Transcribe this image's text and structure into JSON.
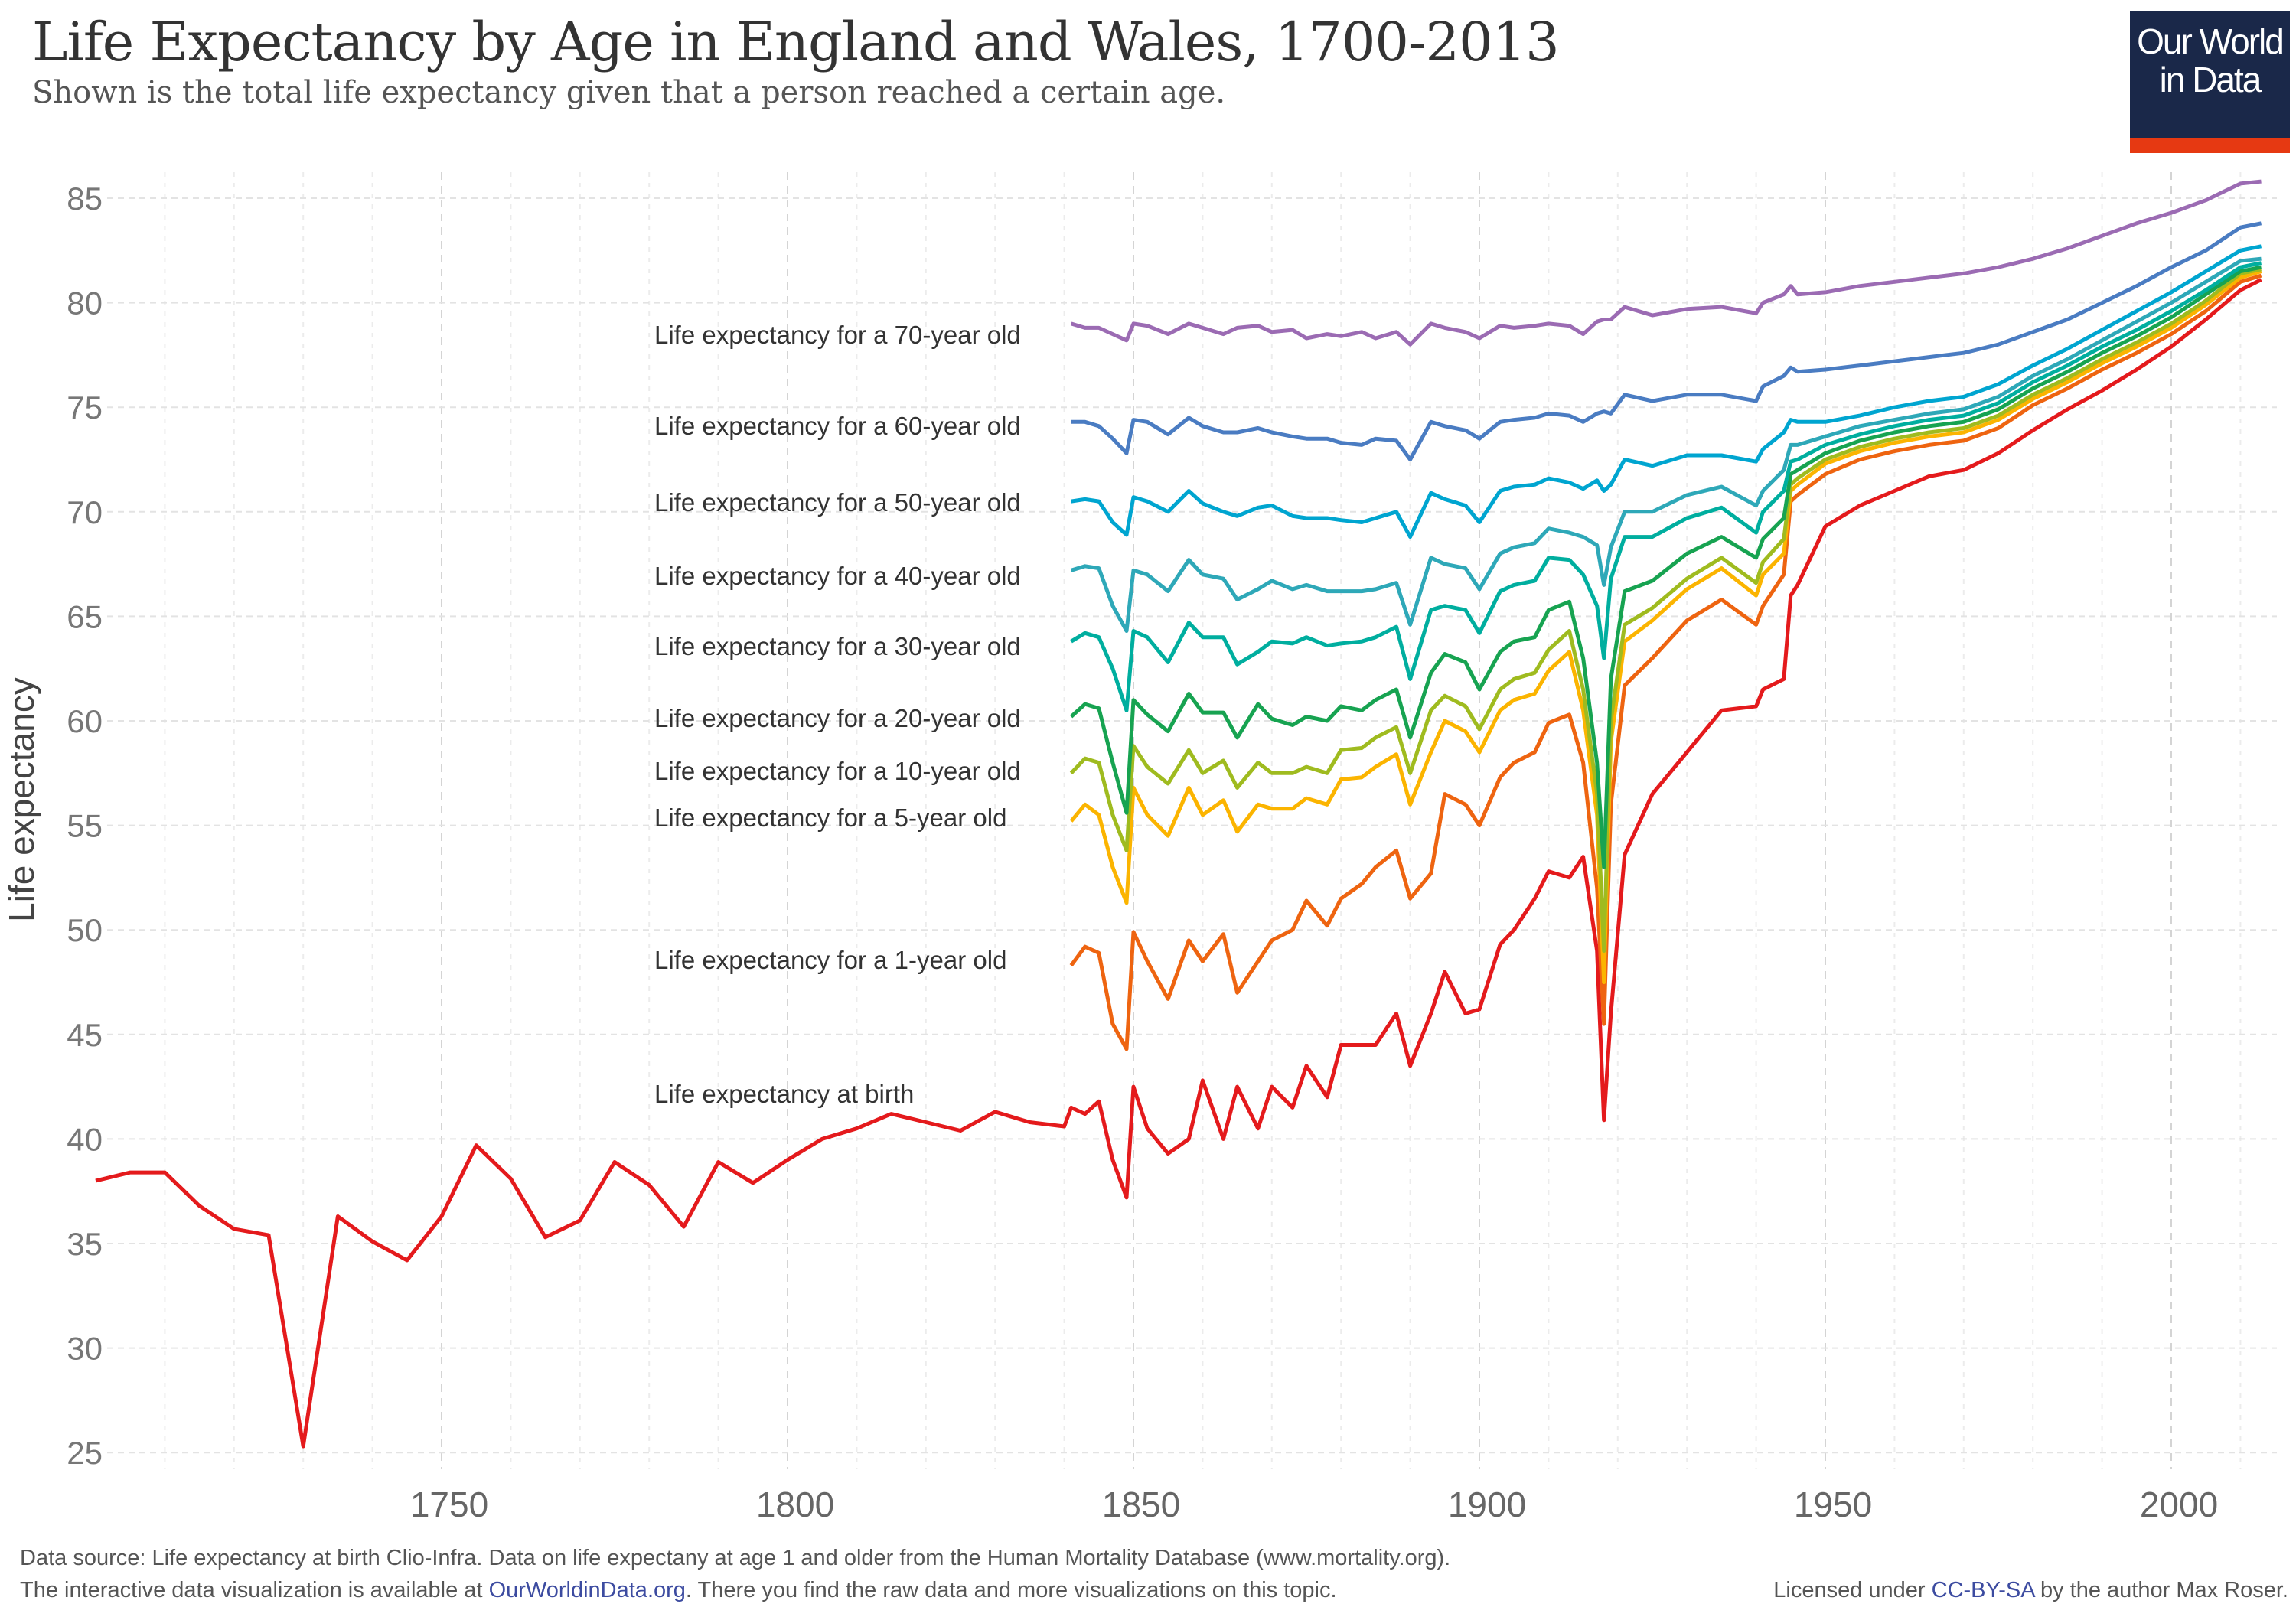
{
  "header": {
    "title": "Life Expectancy by Age in England and Wales, 1700-2013",
    "subtitle": "Shown is the total life expectancy given that a person reached a certain age.",
    "logo_text": "Our World in Data"
  },
  "footer": {
    "source_line": "Data source: Life expectancy at birth Clio-Infra. Data on life expectany at age 1 and older from the Human Mortality Database (www.mortality.org).",
    "interactive_prefix": "The interactive data visualization is available at ",
    "interactive_link": "OurWorldinData.org",
    "interactive_suffix": ". There you find the raw data and more visualizations on this topic.",
    "license_prefix": "Licensed under ",
    "license_link": "CC-BY-SA",
    "license_suffix": " by the author Max Roser."
  },
  "chart_data": {
    "type": "line",
    "title": "Life Expectancy by Age in England and Wales, 1700-2013",
    "xlabel": "",
    "ylabel": "Life expectancy",
    "xlim": [
      1700,
      2014
    ],
    "ylim": [
      23,
      86
    ],
    "x_ticks": [
      1750,
      1800,
      1850,
      1900,
      1950,
      2000
    ],
    "y_ticks": [
      25,
      30,
      35,
      40,
      45,
      50,
      55,
      60,
      65,
      70,
      75,
      80,
      85
    ],
    "grid": true,
    "legend": "inline labels",
    "years": [
      1841,
      1843,
      1845,
      1847,
      1849,
      1850,
      1852,
      1855,
      1858,
      1860,
      1863,
      1865,
      1868,
      1870,
      1873,
      1875,
      1878,
      1880,
      1883,
      1885,
      1888,
      1890,
      1893,
      1895,
      1898,
      1900,
      1903,
      1905,
      1908,
      1910,
      1913,
      1915,
      1917,
      1918,
      1919,
      1921,
      1925,
      1930,
      1935,
      1940,
      1941,
      1944,
      1945,
      1946,
      1950,
      1955,
      1960,
      1965,
      1970,
      1975,
      1980,
      1985,
      1990,
      1995,
      2000,
      2005,
      2010,
      2013
    ],
    "series": [
      {
        "name": "Life expectancy for a 70-year old",
        "color": "#9b6bb3",
        "values": [
          79.0,
          78.8,
          78.8,
          78.5,
          78.2,
          79.0,
          78.9,
          78.5,
          79.0,
          78.8,
          78.5,
          78.8,
          78.9,
          78.6,
          78.7,
          78.3,
          78.5,
          78.4,
          78.6,
          78.3,
          78.6,
          78.0,
          79.0,
          78.8,
          78.6,
          78.3,
          78.9,
          78.8,
          78.9,
          79.0,
          78.9,
          78.5,
          79.1,
          79.2,
          79.2,
          79.8,
          79.4,
          79.7,
          79.8,
          79.5,
          80.0,
          80.4,
          80.8,
          80.4,
          80.5,
          80.8,
          81.0,
          81.2,
          81.4,
          81.7,
          82.1,
          82.6,
          83.2,
          83.8,
          84.3,
          84.9,
          85.7,
          85.8
        ]
      },
      {
        "name": "Life expectancy for a 60-year old",
        "color": "#4a7cc2",
        "values": [
          74.3,
          74.3,
          74.1,
          73.5,
          72.8,
          74.4,
          74.3,
          73.7,
          74.5,
          74.1,
          73.8,
          73.8,
          74.0,
          73.8,
          73.6,
          73.5,
          73.5,
          73.3,
          73.2,
          73.5,
          73.4,
          72.5,
          74.3,
          74.1,
          73.9,
          73.5,
          74.3,
          74.4,
          74.5,
          74.7,
          74.6,
          74.3,
          74.7,
          74.8,
          74.7,
          75.6,
          75.3,
          75.6,
          75.6,
          75.3,
          76.0,
          76.5,
          76.9,
          76.7,
          76.8,
          77.0,
          77.2,
          77.4,
          77.6,
          78.0,
          78.6,
          79.2,
          80.0,
          80.8,
          81.7,
          82.5,
          83.6,
          83.8
        ]
      },
      {
        "name": "Life expectancy for a 50-year old",
        "color": "#00a5d0",
        "values": [
          70.5,
          70.6,
          70.5,
          69.5,
          68.9,
          70.7,
          70.5,
          70.0,
          71.0,
          70.4,
          70.0,
          69.8,
          70.2,
          70.3,
          69.8,
          69.7,
          69.7,
          69.6,
          69.5,
          69.7,
          70.0,
          68.8,
          70.9,
          70.6,
          70.3,
          69.5,
          71.0,
          71.2,
          71.3,
          71.6,
          71.4,
          71.1,
          71.5,
          71.0,
          71.3,
          72.5,
          72.2,
          72.7,
          72.7,
          72.4,
          73.0,
          73.8,
          74.4,
          74.3,
          74.3,
          74.6,
          75.0,
          75.3,
          75.5,
          76.1,
          77.0,
          77.8,
          78.7,
          79.6,
          80.5,
          81.5,
          82.5,
          82.7
        ]
      },
      {
        "name": "Life expectancy for a 40-year old",
        "color": "#2ea8b8",
        "values": [
          67.2,
          67.4,
          67.3,
          65.5,
          64.3,
          67.2,
          67.0,
          66.2,
          67.7,
          67.0,
          66.8,
          65.8,
          66.3,
          66.7,
          66.3,
          66.5,
          66.2,
          66.2,
          66.2,
          66.3,
          66.6,
          64.6,
          67.8,
          67.5,
          67.3,
          66.3,
          68.0,
          68.3,
          68.5,
          69.2,
          69.0,
          68.8,
          68.4,
          66.5,
          68.3,
          70.0,
          70.0,
          70.8,
          71.2,
          70.3,
          71.0,
          72.0,
          73.2,
          73.2,
          73.6,
          74.1,
          74.4,
          74.7,
          74.9,
          75.5,
          76.5,
          77.3,
          78.2,
          79.1,
          80.0,
          81.0,
          82.0,
          82.1
        ]
      },
      {
        "name": "Life expectancy for a 30-year old",
        "color": "#00ae9f",
        "values": [
          63.8,
          64.2,
          64.0,
          62.5,
          60.5,
          64.3,
          64.0,
          62.8,
          64.7,
          64.0,
          64.0,
          62.7,
          63.3,
          63.8,
          63.7,
          64.0,
          63.6,
          63.7,
          63.8,
          64.0,
          64.5,
          62.0,
          65.3,
          65.5,
          65.3,
          64.2,
          66.2,
          66.5,
          66.7,
          67.8,
          67.7,
          67.0,
          65.5,
          63.0,
          66.8,
          68.8,
          68.8,
          69.7,
          70.2,
          69.0,
          70.0,
          71.0,
          72.4,
          72.5,
          73.2,
          73.7,
          74.1,
          74.4,
          74.6,
          75.2,
          76.2,
          77.0,
          77.9,
          78.7,
          79.6,
          80.6,
          81.7,
          81.9
        ]
      },
      {
        "name": "Life expectancy for a 20-year old",
        "color": "#17a351",
        "values": [
          60.2,
          60.8,
          60.6,
          58.0,
          55.6,
          61.0,
          60.3,
          59.5,
          61.3,
          60.4,
          60.4,
          59.2,
          60.8,
          60.1,
          59.8,
          60.2,
          60.0,
          60.7,
          60.5,
          61.0,
          61.5,
          59.2,
          62.3,
          63.2,
          62.8,
          61.5,
          63.3,
          63.8,
          64.0,
          65.3,
          65.7,
          63.0,
          58.0,
          53.0,
          62.0,
          66.2,
          66.7,
          68.0,
          68.8,
          67.8,
          68.7,
          69.7,
          71.8,
          72.0,
          72.8,
          73.4,
          73.8,
          74.1,
          74.3,
          74.9,
          75.9,
          76.7,
          77.6,
          78.4,
          79.3,
          80.4,
          81.5,
          81.7
        ]
      },
      {
        "name": "Life expectancy for a 10-year old",
        "color": "#9fbb1f",
        "values": [
          57.5,
          58.2,
          58.0,
          55.5,
          53.8,
          58.8,
          57.8,
          57.0,
          58.6,
          57.5,
          58.1,
          56.8,
          58.0,
          57.5,
          57.5,
          57.8,
          57.5,
          58.6,
          58.7,
          59.2,
          59.7,
          57.5,
          60.5,
          61.2,
          60.7,
          59.6,
          61.5,
          62.0,
          62.3,
          63.4,
          64.3,
          61.5,
          56.5,
          49.0,
          60.0,
          64.6,
          65.4,
          66.8,
          67.8,
          66.6,
          67.6,
          68.7,
          71.3,
          71.6,
          72.5,
          73.1,
          73.5,
          73.8,
          74.0,
          74.6,
          75.6,
          76.4,
          77.3,
          78.1,
          79.0,
          80.1,
          81.4,
          81.6
        ]
      },
      {
        "name": "Life expectancy for a 5-year old",
        "color": "#fbb400",
        "values": [
          55.2,
          56.0,
          55.5,
          53.0,
          51.3,
          56.8,
          55.5,
          54.5,
          56.8,
          55.5,
          56.2,
          54.7,
          56.0,
          55.8,
          55.8,
          56.3,
          56.0,
          57.2,
          57.3,
          57.8,
          58.4,
          56.0,
          58.5,
          60.0,
          59.5,
          58.5,
          60.5,
          61.0,
          61.3,
          62.4,
          63.3,
          60.5,
          55.5,
          47.5,
          59.0,
          63.8,
          64.8,
          66.3,
          67.3,
          66.0,
          67.0,
          68.0,
          71.0,
          71.3,
          72.3,
          72.9,
          73.3,
          73.6,
          73.8,
          74.4,
          75.4,
          76.2,
          77.1,
          77.9,
          78.8,
          79.9,
          81.2,
          81.5
        ]
      },
      {
        "name": "Life expectancy for a 1-year old",
        "color": "#ee6410",
        "values": [
          48.3,
          49.2,
          48.9,
          45.5,
          44.3,
          49.9,
          48.5,
          46.7,
          49.5,
          48.5,
          49.8,
          47.0,
          48.5,
          49.5,
          50.0,
          51.4,
          50.2,
          51.5,
          52.2,
          53.0,
          53.8,
          51.5,
          52.7,
          56.5,
          56.0,
          55.0,
          57.3,
          58.0,
          58.5,
          59.9,
          60.3,
          58.0,
          52.0,
          45.5,
          56.0,
          61.7,
          63.0,
          64.8,
          65.8,
          64.6,
          65.5,
          67.0,
          70.5,
          70.8,
          71.8,
          72.5,
          72.9,
          73.2,
          73.4,
          74.0,
          75.1,
          75.9,
          76.8,
          77.6,
          78.5,
          79.6,
          81.0,
          81.3
        ]
      },
      {
        "name": "Life expectancy at birth",
        "color": "#e41a1c",
        "early_years": [
          1700,
          1705,
          1710,
          1715,
          1720,
          1725,
          1730,
          1735,
          1740,
          1745,
          1750,
          1755,
          1760,
          1765,
          1770,
          1775,
          1780,
          1785,
          1790,
          1795,
          1800,
          1805,
          1810,
          1815,
          1820,
          1825,
          1830,
          1835,
          1840
        ],
        "early_values": [
          38.0,
          38.4,
          38.4,
          36.8,
          35.7,
          35.4,
          25.3,
          36.3,
          35.1,
          34.2,
          36.3,
          39.7,
          38.1,
          35.3,
          36.1,
          38.9,
          37.8,
          35.8,
          38.9,
          37.9,
          39.0,
          40.0,
          40.5,
          41.2,
          40.8,
          40.4,
          41.3,
          40.8,
          40.6
        ],
        "values": [
          41.5,
          41.2,
          41.8,
          39.0,
          37.2,
          42.5,
          40.5,
          39.3,
          40.0,
          42.8,
          40.0,
          42.5,
          40.5,
          42.5,
          41.5,
          43.5,
          42.0,
          44.5,
          44.5,
          44.5,
          46.0,
          43.5,
          46.0,
          48.0,
          46.0,
          46.2,
          49.3,
          50.0,
          51.5,
          52.8,
          52.5,
          53.5,
          49.0,
          40.9,
          46.0,
          53.6,
          56.5,
          58.5,
          60.5,
          60.7,
          61.5,
          62.0,
          66.0,
          66.5,
          69.3,
          70.3,
          71.0,
          71.7,
          72.0,
          72.8,
          73.9,
          74.9,
          75.8,
          76.8,
          77.9,
          79.2,
          80.6,
          81.1
        ]
      }
    ]
  }
}
